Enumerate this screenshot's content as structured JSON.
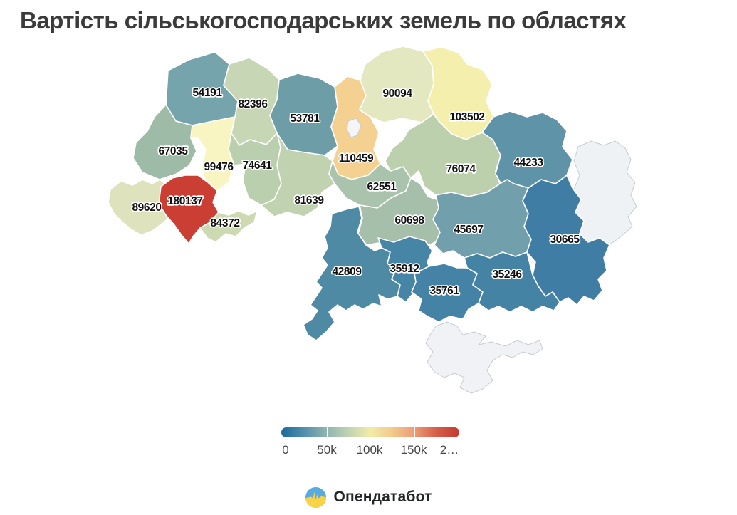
{
  "title": "Вартість сільськогосподарських земель по областях",
  "map": {
    "no_data_border": "#c6ccd4",
    "data_border": "#ffffff",
    "label_color": "#101010",
    "regions": [
      {
        "id": "volyn",
        "value": "54191",
        "color": "#76a4ac",
        "no_data": false
      },
      {
        "id": "rivne",
        "value": "82396",
        "color": "#c7d6b4",
        "no_data": false
      },
      {
        "id": "zhytomyr",
        "value": "53781",
        "color": "#6d9ea7",
        "no_data": false
      },
      {
        "id": "kyiv-oblast",
        "value": "110459",
        "color": "#f4d191",
        "no_data": false
      },
      {
        "id": "kyiv-city",
        "value": "",
        "color": "#f3f5f7",
        "no_data": true
      },
      {
        "id": "chernihiv",
        "value": "90094",
        "color": "#e3e8c1",
        "no_data": false
      },
      {
        "id": "sumy",
        "value": "103502",
        "color": "#f4efad",
        "no_data": false
      },
      {
        "id": "lviv",
        "value": "67035",
        "color": "#9dbba7",
        "no_data": false
      },
      {
        "id": "ternopil",
        "value": "99476",
        "color": "#f8f5c3",
        "no_data": false
      },
      {
        "id": "khmelnytskyi",
        "value": "74641",
        "color": "#b9cfae",
        "no_data": false
      },
      {
        "id": "vinnytsia",
        "value": "81639",
        "color": "#c0d2af",
        "no_data": false
      },
      {
        "id": "cherkasy",
        "value": "62551",
        "color": "#a9c3ad",
        "no_data": false
      },
      {
        "id": "poltava",
        "value": "76074",
        "color": "#bdd0ad",
        "no_data": false
      },
      {
        "id": "kharkiv",
        "value": "44233",
        "color": "#5e93a8",
        "no_data": false
      },
      {
        "id": "luhansk",
        "value": "",
        "color": "#eff2f5",
        "no_data": true
      },
      {
        "id": "zakarpattia",
        "value": "89620",
        "color": "#dfe3bd",
        "no_data": false
      },
      {
        "id": "ivano-frankivsk",
        "value": "180137",
        "color": "#cb3e33",
        "no_data": false
      },
      {
        "id": "chernivtsi",
        "value": "84372",
        "color": "#cdd9b0",
        "no_data": false
      },
      {
        "id": "kirovohrad",
        "value": "60698",
        "color": "#a5bfab",
        "no_data": false
      },
      {
        "id": "dnipro",
        "value": "45697",
        "color": "#719fab",
        "no_data": false
      },
      {
        "id": "donetsk",
        "value": "30665",
        "color": "#3f7da4",
        "no_data": false
      },
      {
        "id": "odesa",
        "value": "42809",
        "color": "#4f8aa4",
        "no_data": false
      },
      {
        "id": "mykolaiv",
        "value": "35912",
        "color": "#4785a6",
        "no_data": false
      },
      {
        "id": "kherson",
        "value": "35761",
        "color": "#4483a6",
        "no_data": false
      },
      {
        "id": "zaporizhzhia",
        "value": "35246",
        "color": "#4583a5",
        "no_data": false
      },
      {
        "id": "crimea",
        "value": "",
        "color": "#f0f2f5",
        "no_data": true
      }
    ]
  },
  "legend": {
    "labels": [
      "0",
      "50k",
      "100k",
      "150k",
      "2…"
    ],
    "gradient": [
      "#1f689a",
      "#4f8fab",
      "#8fb3ae",
      "#bed2b2",
      "#f2eca8",
      "#f3c98c",
      "#ec9b74",
      "#d65c4a",
      "#c23a30"
    ]
  },
  "footer": {
    "brand": "Опендатабот",
    "flag_blue": "#58abe0",
    "flag_yellow": "#f8d348"
  }
}
